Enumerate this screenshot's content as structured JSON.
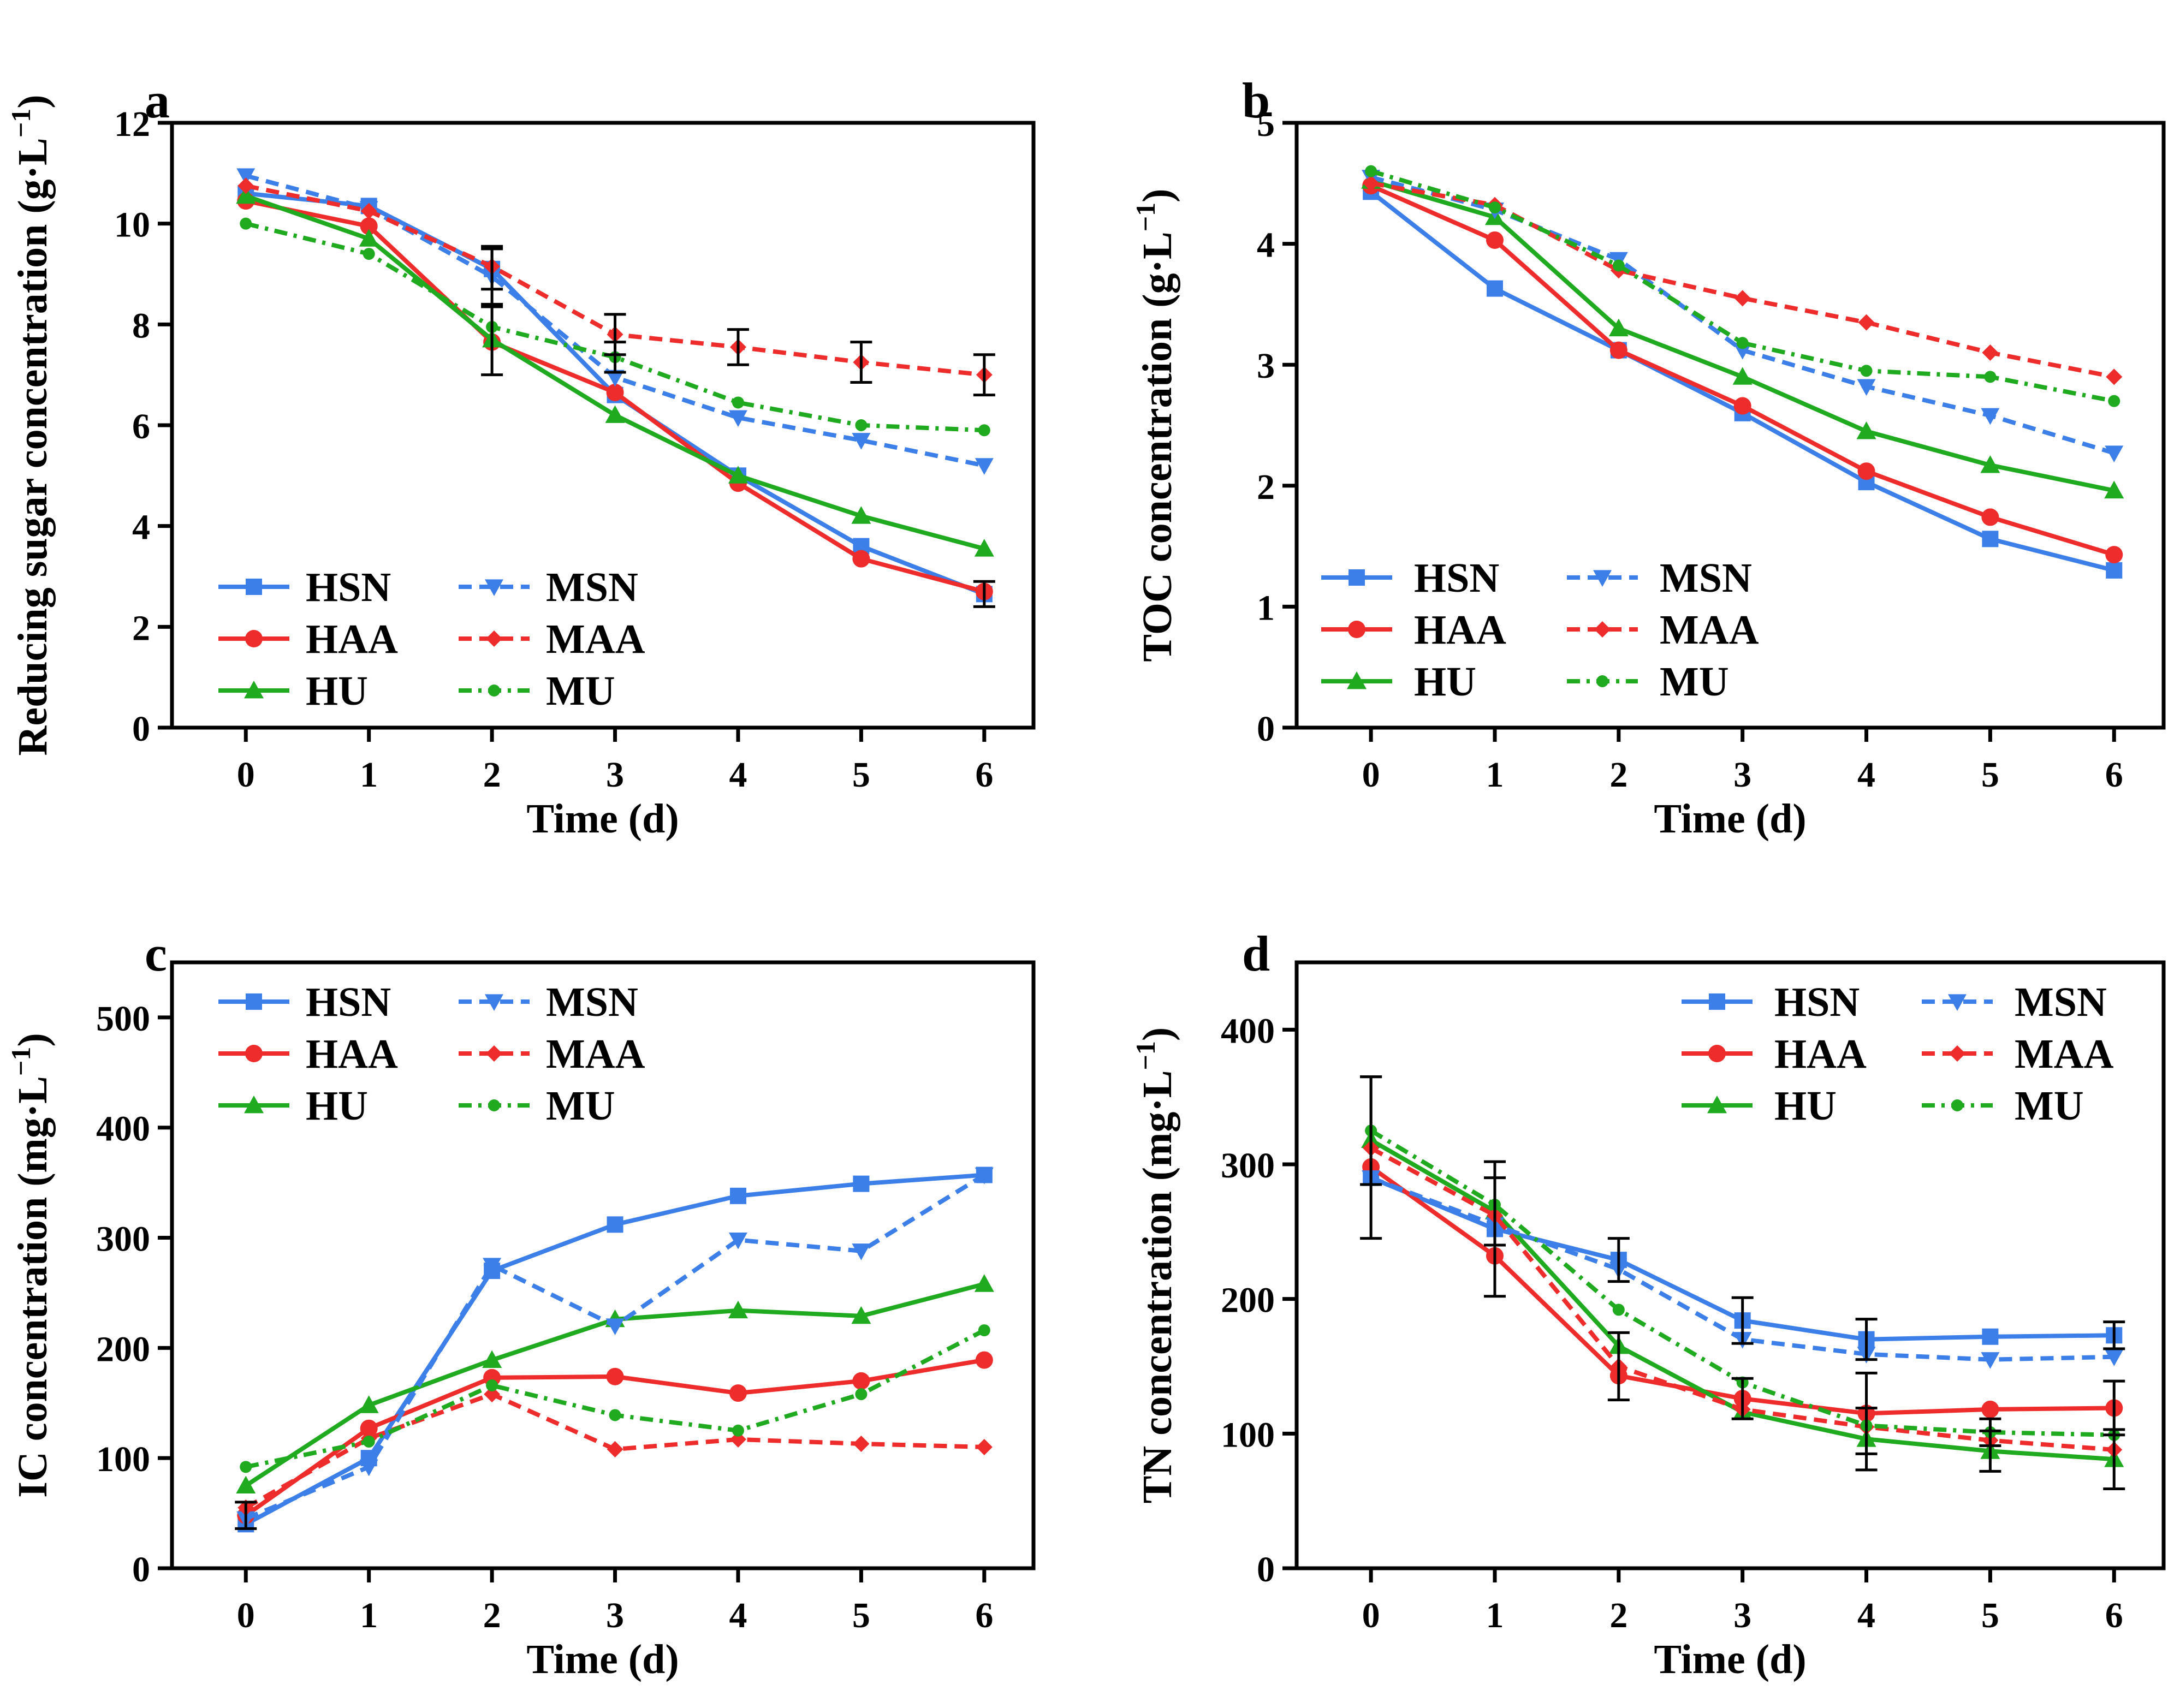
{
  "colors": {
    "HSN": "#3c7fe8",
    "HAA": "#ee2c2c",
    "HU": "#1faa1f",
    "MSN": "#3c7fe8",
    "MAA": "#ee2c2c",
    "MU": "#1faa1f",
    "axis": "#000000",
    "errorbar": "#000000"
  },
  "series_styles": {
    "HSN": {
      "marker": "square",
      "dash": "solid"
    },
    "HAA": {
      "marker": "circle",
      "dash": "solid"
    },
    "HU": {
      "marker": "triangle-up",
      "dash": "solid"
    },
    "MSN": {
      "marker": "triangle-down",
      "dash": "dashed"
    },
    "MAA": {
      "marker": "diamond",
      "dash": "dashed"
    },
    "MU": {
      "marker": "circle-small",
      "dash": "dash-dot"
    }
  },
  "chart_data": [
    {
      "panel": "a",
      "type": "line",
      "xlabel": "Time (d)",
      "ylabel_main": "Reducing sugar concentration (g·L",
      "ylabel_sup": "−1",
      "ylabel_close": ")",
      "x": [
        0,
        1,
        2,
        3,
        4,
        5,
        6
      ],
      "xticks": [
        "0",
        "1",
        "2",
        "3",
        "4",
        "5",
        "6"
      ],
      "ylim": [
        0,
        12
      ],
      "yticks": [
        "0",
        "2",
        "4",
        "6",
        "8",
        "10",
        "12"
      ],
      "legend_position": "bottom-left",
      "series": [
        {
          "name": "HSN",
          "values": [
            10.6,
            10.35,
            9.1,
            6.6,
            5.0,
            3.6,
            2.65
          ]
        },
        {
          "name": "HAA",
          "values": [
            10.45,
            9.95,
            7.65,
            6.65,
            4.85,
            3.35,
            2.7
          ]
        },
        {
          "name": "HU",
          "values": [
            10.55,
            9.7,
            7.7,
            6.2,
            5.0,
            4.2,
            3.55
          ]
        },
        {
          "name": "MSN",
          "values": [
            10.95,
            10.3,
            8.95,
            6.95,
            6.15,
            5.7,
            5.2
          ]
        },
        {
          "name": "MAA",
          "values": [
            10.75,
            10.25,
            9.15,
            7.8,
            7.55,
            7.25,
            7.0
          ]
        },
        {
          "name": "MU",
          "values": [
            10.0,
            9.4,
            7.95,
            7.35,
            6.45,
            6.0,
            5.9
          ]
        }
      ],
      "error_bars": [
        {
          "x": 2,
          "y": 7.7,
          "err": 0.7
        },
        {
          "x": 2,
          "y": 9.1,
          "err": 0.4
        },
        {
          "x": 2,
          "y": 8.95,
          "err": 0.6
        },
        {
          "x": 3,
          "y": 7.8,
          "err": 0.4
        },
        {
          "x": 3,
          "y": 7.35,
          "err": 0.3
        },
        {
          "x": 4,
          "y": 7.55,
          "err": 0.35
        },
        {
          "x": 5,
          "y": 7.25,
          "err": 0.4
        },
        {
          "x": 6,
          "y": 7.0,
          "err": 0.4
        },
        {
          "x": 6,
          "y": 2.65,
          "err": 0.25
        }
      ]
    },
    {
      "panel": "b",
      "type": "line",
      "xlabel": "Time (d)",
      "ylabel_main": "TOC concentration (g·L",
      "ylabel_sup": "−1",
      "ylabel_close": ")",
      "x": [
        0,
        1,
        2,
        3,
        4,
        5,
        6
      ],
      "xticks": [
        "0",
        "1",
        "2",
        "3",
        "4",
        "5",
        "6"
      ],
      "ylim": [
        0,
        5
      ],
      "yticks": [
        "0",
        "1",
        "2",
        "3",
        "4",
        "5"
      ],
      "legend_position": "bottom-left",
      "series": [
        {
          "name": "HSN",
          "values": [
            4.43,
            3.63,
            3.12,
            2.6,
            2.03,
            1.56,
            1.3
          ]
        },
        {
          "name": "HAA",
          "values": [
            4.48,
            4.03,
            3.12,
            2.66,
            2.12,
            1.74,
            1.43
          ]
        },
        {
          "name": "HU",
          "values": [
            4.52,
            4.22,
            3.3,
            2.9,
            2.45,
            2.17,
            1.96
          ]
        },
        {
          "name": "MSN",
          "values": [
            4.55,
            4.28,
            3.87,
            3.12,
            2.82,
            2.58,
            2.27
          ]
        },
        {
          "name": "MAA",
          "values": [
            4.5,
            4.32,
            3.78,
            3.55,
            3.35,
            3.1,
            2.9
          ]
        },
        {
          "name": "MU",
          "values": [
            4.6,
            4.3,
            3.82,
            3.18,
            2.95,
            2.9,
            2.7
          ]
        }
      ],
      "error_bars": []
    },
    {
      "panel": "c",
      "type": "line",
      "xlabel": "Time (d)",
      "ylabel_main": "IC concentration (mg·L",
      "ylabel_sup": "−1",
      "ylabel_close": ")",
      "x": [
        0,
        1,
        2,
        3,
        4,
        5,
        6
      ],
      "xticks": [
        "0",
        "1",
        "2",
        "3",
        "4",
        "5",
        "6"
      ],
      "ylim": [
        0,
        550
      ],
      "yticks": [
        "0",
        "100",
        "200",
        "300",
        "400",
        "500"
      ],
      "ytick_values": [
        0,
        100,
        200,
        300,
        400,
        500
      ],
      "legend_position": "top-left",
      "series": [
        {
          "name": "HSN",
          "values": [
            40,
            100,
            270,
            312,
            338,
            349,
            357
          ]
        },
        {
          "name": "HAA",
          "values": [
            48,
            127,
            173,
            174,
            159,
            170,
            189
          ]
        },
        {
          "name": "HU",
          "values": [
            75,
            148,
            189,
            226,
            234,
            229,
            258
          ]
        },
        {
          "name": "MSN",
          "values": [
            45,
            92,
            275,
            220,
            298,
            288,
            357
          ]
        },
        {
          "name": "MAA",
          "values": [
            55,
            118,
            158,
            108,
            117,
            113,
            110
          ]
        },
        {
          "name": "MU",
          "values": [
            92,
            115,
            166,
            139,
            125,
            158,
            216
          ]
        }
      ],
      "error_bars": [
        {
          "x": 0,
          "y": 48,
          "err": 12
        }
      ]
    },
    {
      "panel": "d",
      "type": "line",
      "xlabel": "Time (d)",
      "ylabel_main": "TN concentration (mg·L",
      "ylabel_sup": "−1",
      "ylabel_close": ")",
      "x": [
        0,
        1,
        2,
        3,
        4,
        5,
        6
      ],
      "xticks": [
        "0",
        "1",
        "2",
        "3",
        "4",
        "5",
        "6"
      ],
      "ylim": [
        0,
        450
      ],
      "yticks": [
        "0",
        "100",
        "200",
        "300",
        "400"
      ],
      "ytick_values": [
        0,
        100,
        200,
        300,
        400
      ],
      "legend_position": "top-right",
      "series": [
        {
          "name": "HSN",
          "values": [
            290,
            252,
            229,
            184,
            170,
            172,
            173
          ]
        },
        {
          "name": "HAA",
          "values": [
            298,
            232,
            143,
            126,
            115,
            118,
            119
          ]
        },
        {
          "name": "HU",
          "values": [
            318,
            265,
            165,
            116,
            96,
            87,
            81
          ]
        },
        {
          "name": "MSN",
          "values": [
            290,
            255,
            222,
            170,
            159,
            155,
            157
          ]
        },
        {
          "name": "MAA",
          "values": [
            312,
            262,
            150,
            118,
            105,
            95,
            88
          ]
        },
        {
          "name": "MU",
          "values": [
            325,
            270,
            192,
            138,
            106,
            101,
            99
          ]
        }
      ],
      "error_bars": [
        {
          "x": 0,
          "y": 305,
          "err": 60
        },
        {
          "x": 0,
          "y": 325,
          "err": 40
        },
        {
          "x": 1,
          "y": 252,
          "err": 50
        },
        {
          "x": 1,
          "y": 265,
          "err": 25
        },
        {
          "x": 2,
          "y": 229,
          "err": 16
        },
        {
          "x": 2,
          "y": 150,
          "err": 25
        },
        {
          "x": 3,
          "y": 184,
          "err": 17
        },
        {
          "x": 3,
          "y": 126,
          "err": 15
        },
        {
          "x": 4,
          "y": 170,
          "err": 15
        },
        {
          "x": 4,
          "y": 115,
          "err": 30
        },
        {
          "x": 4,
          "y": 96,
          "err": 23
        },
        {
          "x": 5,
          "y": 101,
          "err": 10
        },
        {
          "x": 5,
          "y": 87,
          "err": 15
        },
        {
          "x": 6,
          "y": 173,
          "err": 10
        },
        {
          "x": 6,
          "y": 119,
          "err": 20
        },
        {
          "x": 6,
          "y": 81,
          "err": 22
        }
      ]
    }
  ]
}
